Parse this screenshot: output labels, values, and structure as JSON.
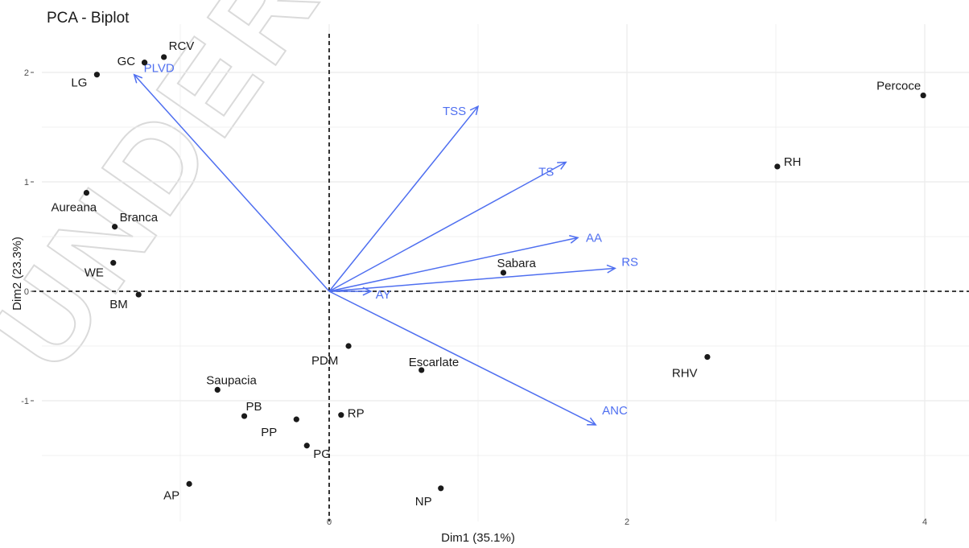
{
  "chart_data": {
    "type": "scatter",
    "title": "PCA - Biplot",
    "xlabel": "Dim1 (35.1%)",
    "ylabel": "Dim2 (23.3%)",
    "xlim": [
      -2.2,
      4.2
    ],
    "ylim": [
      -1.97,
      2.3
    ],
    "x_ticks": [
      0,
      2,
      4
    ],
    "y_ticks": [
      -1,
      0,
      1,
      2
    ],
    "grid": true,
    "reference_lines": {
      "x": 0,
      "y": 0
    },
    "points": [
      {
        "label": "RCV",
        "x": -1.11,
        "y": 2.14
      },
      {
        "label": "PLVD",
        "x": -1.24,
        "y": 2.09
      },
      {
        "label": "GC",
        "x": -1.24,
        "y": 2.09
      },
      {
        "label": "LG",
        "x": -1.56,
        "y": 1.98
      },
      {
        "label": "Percoce",
        "x": 3.99,
        "y": 1.79
      },
      {
        "label": "RH",
        "x": 3.01,
        "y": 1.14
      },
      {
        "label": "Aureana",
        "x": -1.63,
        "y": 0.9
      },
      {
        "label": "Branca",
        "x": -1.44,
        "y": 0.59
      },
      {
        "label": "WE",
        "x": -1.45,
        "y": 0.26
      },
      {
        "label": "Sabara",
        "x": 1.17,
        "y": 0.17
      },
      {
        "label": "BM",
        "x": -1.28,
        "y": -0.03
      },
      {
        "label": "PDM",
        "x": 0.13,
        "y": -0.5
      },
      {
        "label": "RHV",
        "x": 2.54,
        "y": -0.6
      },
      {
        "label": "Escarlate",
        "x": 0.62,
        "y": -0.72
      },
      {
        "label": "Saupacia",
        "x": -0.75,
        "y": -0.9
      },
      {
        "label": "PB",
        "x": -0.57,
        "y": -1.14
      },
      {
        "label": "RP",
        "x": 0.08,
        "y": -1.13
      },
      {
        "label": "PP",
        "x": -0.22,
        "y": -1.17
      },
      {
        "label": "PG",
        "x": -0.15,
        "y": -1.41
      },
      {
        "label": "AP",
        "x": -0.94,
        "y": -1.76
      },
      {
        "label": "NP",
        "x": 0.75,
        "y": -1.8
      }
    ],
    "variables": [
      {
        "label": "PLVD",
        "x": -1.31,
        "y": 1.98
      },
      {
        "label": "TSS",
        "x": 1.0,
        "y": 1.69
      },
      {
        "label": "TS",
        "x": 1.59,
        "y": 1.18
      },
      {
        "label": "AA",
        "x": 1.67,
        "y": 0.49
      },
      {
        "label": "RS",
        "x": 1.92,
        "y": 0.21
      },
      {
        "label": "AY",
        "x": 0.28,
        "y": 0.0
      },
      {
        "label": "ANC",
        "x": 1.79,
        "y": -1.22
      }
    ],
    "colors": {
      "points": "#1a1a1a",
      "arrows": "#4f6ff0",
      "grid": "#ebebeb"
    }
  },
  "watermark": "UNDER PEER"
}
